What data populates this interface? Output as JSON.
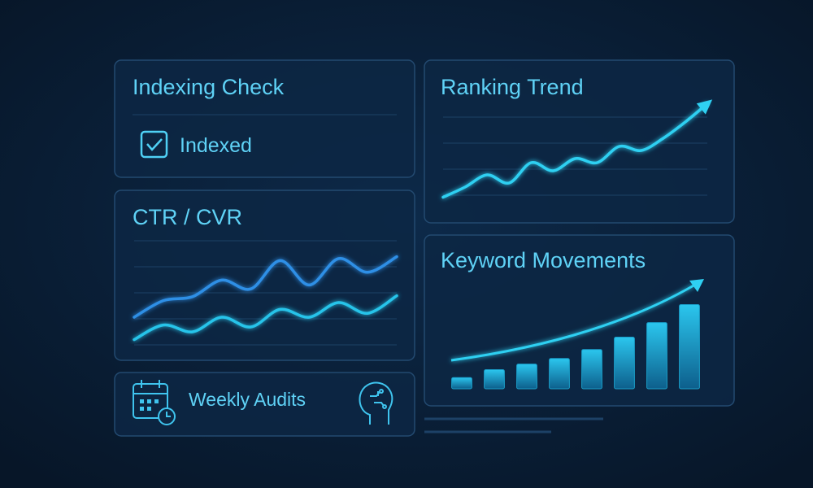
{
  "indexing": {
    "title": "Indexing Check",
    "status": "Indexed"
  },
  "ctr": {
    "title": "CTR / CVR",
    "chart_data": {
      "type": "line",
      "ylim": [
        0,
        100
      ],
      "series": [
        {
          "color": "#2e8fe6",
          "values": [
            25,
            42,
            46,
            63,
            54,
            83,
            58,
            85,
            71,
            87
          ]
        },
        {
          "color": "#28c4ea",
          "values": [
            2,
            17,
            10,
            25,
            15,
            33,
            25,
            40,
            29,
            47
          ]
        }
      ]
    }
  },
  "audits": {
    "label": "Weekly Audits"
  },
  "ranking": {
    "title": "Ranking Trend",
    "chart_data": {
      "type": "line",
      "ylim": [
        0,
        100
      ],
      "series": [
        {
          "color": "#2fd0f2",
          "values": [
            2,
            12,
            24,
            16,
            36,
            28,
            40,
            36,
            52,
            48,
            60,
            76,
            94
          ]
        }
      ]
    }
  },
  "keywords": {
    "title": "Keyword Movements",
    "chart_data": {
      "type": "bar",
      "ylim": [
        0,
        100
      ],
      "color": "#1a9ec9",
      "values": [
        10,
        17,
        22,
        27,
        35,
        46,
        59,
        75
      ]
    }
  }
}
